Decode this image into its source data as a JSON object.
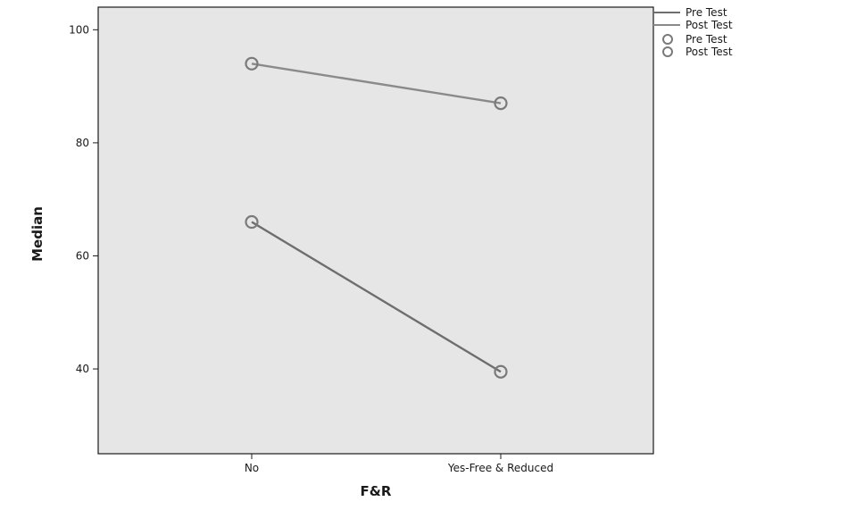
{
  "chart_data": {
    "type": "line",
    "title": "",
    "xlabel": "F&R",
    "ylabel": "Median",
    "categories": [
      "No",
      "Yes-Free & Reduced"
    ],
    "ylim": [
      25,
      104
    ],
    "yticks": [
      40,
      60,
      80,
      100
    ],
    "grid": false,
    "legend_position": "top-right, outside plot",
    "plot_background": "#e6e6e6",
    "series": [
      {
        "name": "Pre Test",
        "values": [
          66,
          39.5
        ],
        "color": "#6e6e6e"
      },
      {
        "name": "Post Test",
        "values": [
          94,
          87
        ],
        "color": "#8a8a8a"
      }
    ],
    "legend": {
      "lines": [
        "Pre Test",
        "Post Test"
      ],
      "markers": [
        "Pre Test",
        "Post Test"
      ]
    }
  }
}
